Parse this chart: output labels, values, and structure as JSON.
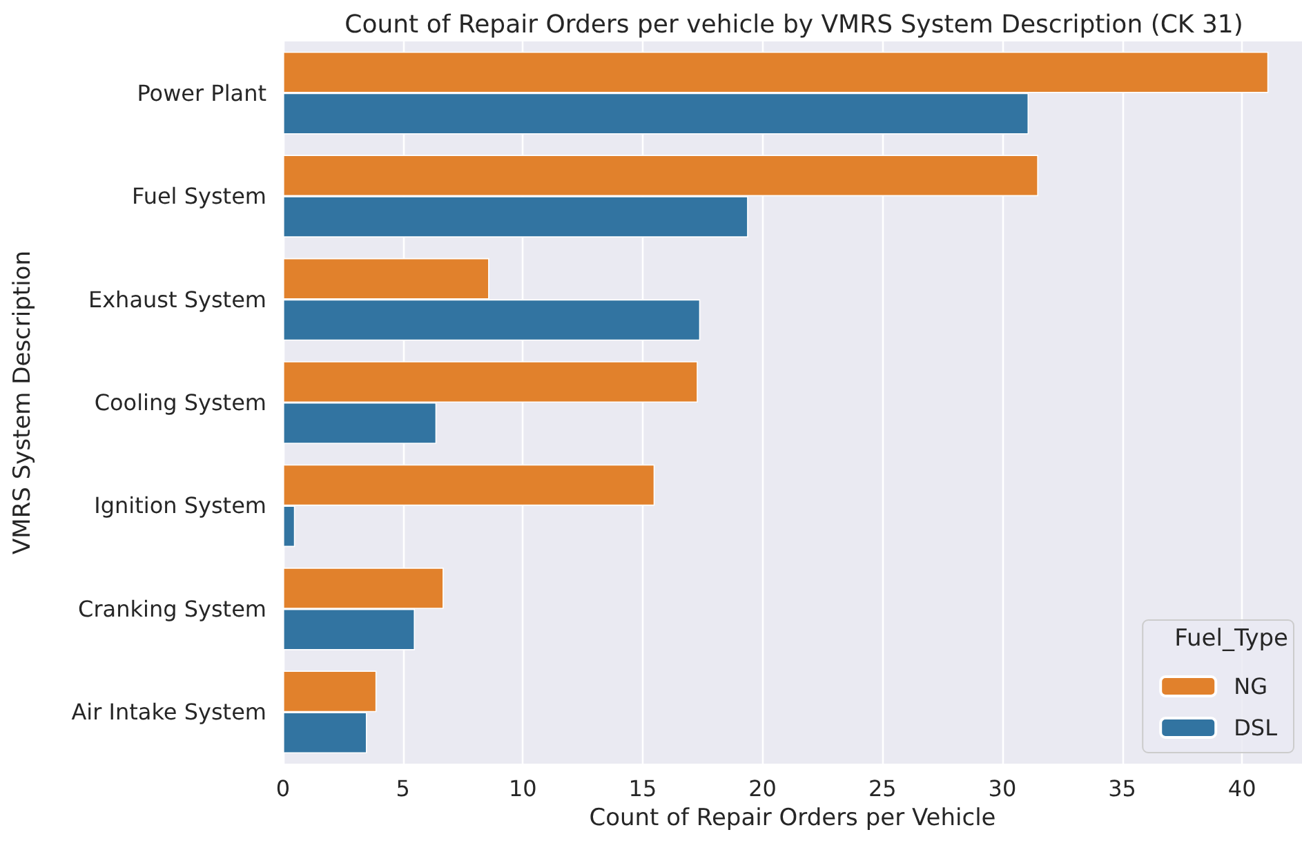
{
  "chart_data": {
    "type": "bar",
    "orientation": "horizontal",
    "title": "Count of Repair Orders per vehicle by VMRS System Description (CK 31)",
    "xlabel": "Count of Repair Orders per Vehicle",
    "ylabel": "VMRS System Description",
    "legend_title": "Fuel_Type",
    "categories": [
      "Power Plant",
      "Fuel System",
      "Exhaust System",
      "Cooling System",
      "Ignition System",
      "Cranking System",
      "Air Intake System"
    ],
    "series": [
      {
        "name": "NG",
        "color": "#e1812c",
        "values": [
          41.1,
          31.5,
          8.6,
          17.3,
          15.5,
          6.7,
          3.9
        ]
      },
      {
        "name": "DSL",
        "color": "#3274a1",
        "values": [
          31.1,
          19.4,
          17.4,
          6.4,
          0.5,
          5.5,
          3.5
        ]
      }
    ],
    "xlim": [
      0,
      42.5
    ],
    "xticks": [
      0,
      5,
      10,
      15,
      20,
      25,
      30,
      35,
      40
    ],
    "grid": "x",
    "legend": "bottom right"
  }
}
